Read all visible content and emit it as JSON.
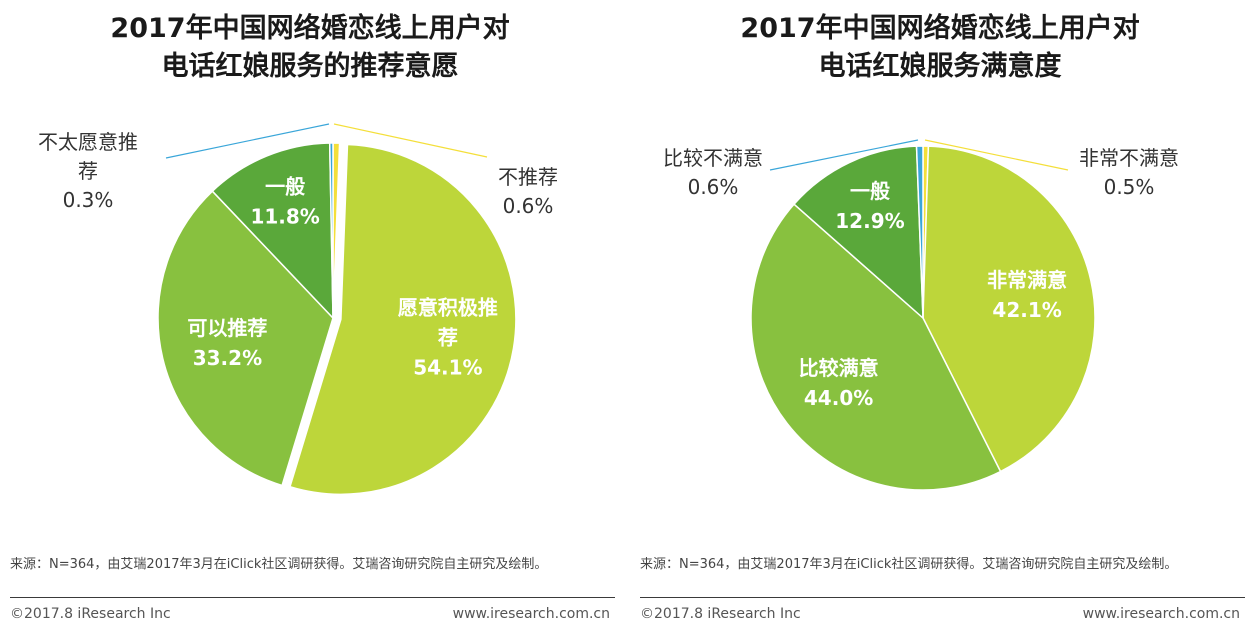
{
  "chart_data": [
    {
      "type": "pie",
      "title_line1": "2017年中国网络婚恋线上用户对",
      "title_line2": "电话红娘服务的推荐意愿",
      "unit": "%",
      "start": "12 o'clock, clockwise",
      "slices": [
        {
          "label": "不推荐",
          "label_lines": [
            "不推荐"
          ],
          "value": 0.6,
          "value_text": "0.6%",
          "color": "#f4df3a",
          "label_position": "outside"
        },
        {
          "label": "愿意积极推荐",
          "label_lines": [
            "愿意积极推",
            "荐"
          ],
          "value": 54.1,
          "value_text": "54.1%",
          "color": "#bdd63a",
          "label_position": "inside",
          "exploded": true
        },
        {
          "label": "可以推荐",
          "label_lines": [
            "可以推荐"
          ],
          "value": 33.2,
          "value_text": "33.2%",
          "color": "#88c13f",
          "label_position": "inside"
        },
        {
          "label": "一般",
          "label_lines": [
            "一般"
          ],
          "value": 11.8,
          "value_text": "11.8%",
          "color": "#5aa83a",
          "label_position": "inside"
        },
        {
          "label": "不太愿意推荐",
          "label_lines": [
            "不太愿意推",
            "荐"
          ],
          "value": 0.3,
          "value_text": "0.3%",
          "color": "#3aa6d9",
          "label_position": "outside"
        }
      ]
    },
    {
      "type": "pie",
      "title_line1": "2017年中国网络婚恋线上用户对",
      "title_line2": "电话红娘服务满意度",
      "unit": "%",
      "start": "12 o'clock, clockwise",
      "slices": [
        {
          "label": "非常不满意",
          "label_lines": [
            "非常不满意"
          ],
          "value": 0.5,
          "value_text": "0.5%",
          "color": "#f4df3a",
          "label_position": "outside"
        },
        {
          "label": "非常满意",
          "label_lines": [
            "非常满意"
          ],
          "value": 42.1,
          "value_text": "42.1%",
          "color": "#bdd63a",
          "label_position": "inside"
        },
        {
          "label": "比较满意",
          "label_lines": [
            "比较满意"
          ],
          "value": 44.0,
          "value_text": "44.0%",
          "color": "#88c13f",
          "label_position": "inside"
        },
        {
          "label": "一般",
          "label_lines": [
            "一般"
          ],
          "value": 12.9,
          "value_text": "12.9%",
          "color": "#5aa83a",
          "label_position": "inside"
        },
        {
          "label": "比较不满意",
          "label_lines": [
            "比较不满意"
          ],
          "value": 0.6,
          "value_text": "0.6%",
          "color": "#3aa6d9",
          "label_position": "outside"
        }
      ]
    }
  ],
  "source_text": "来源：N=364，由艾瑞2017年3月在iClick社区调研获得。艾瑞咨询研究院自主研究及绘制。",
  "copyright": "©2017.8 iResearch Inc",
  "website": "www.iresearch.com.cn"
}
